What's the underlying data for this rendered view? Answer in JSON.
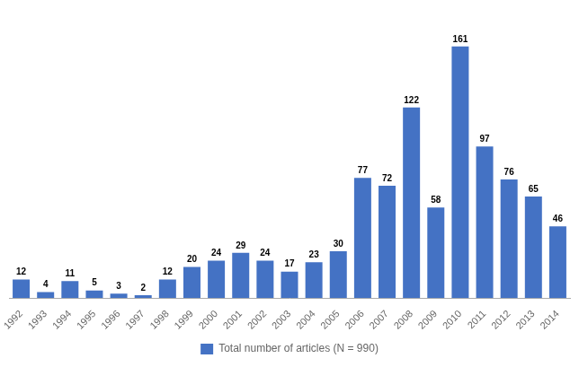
{
  "chart_data": {
    "type": "bar",
    "categories": [
      "1992",
      "1993",
      "1994",
      "1995",
      "1996",
      "1997",
      "1998",
      "1999",
      "2000",
      "2001",
      "2002",
      "2003",
      "2004",
      "2005",
      "2006",
      "2007",
      "2008",
      "2009",
      "2010",
      "2011",
      "2012",
      "2013",
      "2014"
    ],
    "series": [
      {
        "name": "Total number of articles (N = 990)",
        "color": "#4472C4",
        "values": [
          12,
          4,
          11,
          5,
          3,
          2,
          12,
          20,
          24,
          29,
          24,
          17,
          23,
          30,
          77,
          72,
          122,
          58,
          161,
          97,
          76,
          65,
          46
        ]
      }
    ],
    "ylim": [
      0,
      185
    ],
    "grid": false,
    "legend": "bottom",
    "data_labels": true,
    "tick_labels": "x"
  }
}
